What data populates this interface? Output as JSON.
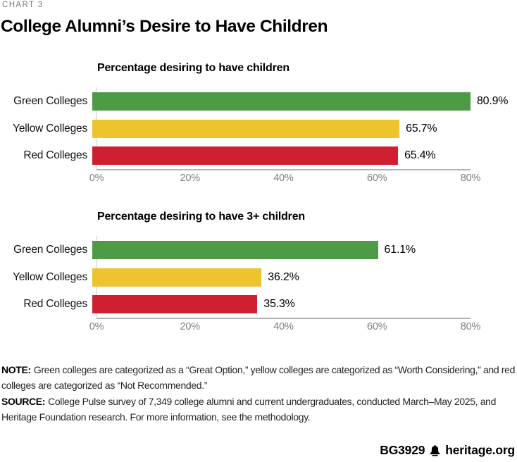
{
  "kicker": "CHART 3",
  "title": "College Alumni’s Desire to Have Children",
  "chart_data": [
    {
      "type": "bar",
      "orientation": "horizontal",
      "title": "Percentage desiring to have children",
      "categories": [
        "Green Colleges",
        "Yellow Colleges",
        "Red Colleges"
      ],
      "values": [
        80.9,
        65.7,
        65.4
      ],
      "value_labels": [
        "80.9%",
        "65.7%",
        "65.4%"
      ],
      "bar_colors": [
        "#4e9b45",
        "#eec32d",
        "#ce2030"
      ],
      "xlabel": "",
      "ylabel": "",
      "xlim": [
        0,
        80
      ],
      "xticks": [
        "0%",
        "20%",
        "40%",
        "60%",
        "80%"
      ],
      "grid": false,
      "legend": false
    },
    {
      "type": "bar",
      "orientation": "horizontal",
      "title": "Percentage desiring to have 3+ children",
      "categories": [
        "Green Colleges",
        "Yellow Colleges",
        "Red Colleges"
      ],
      "values": [
        61.1,
        36.2,
        35.3
      ],
      "value_labels": [
        "61.1%",
        "36.2%",
        "35.3%"
      ],
      "bar_colors": [
        "#4e9b45",
        "#eec32d",
        "#ce2030"
      ],
      "xlabel": "",
      "ylabel": "",
      "xlim": [
        0,
        80
      ],
      "xticks": [
        "0%",
        "20%",
        "40%",
        "60%",
        "80%"
      ],
      "grid": false,
      "legend": false
    }
  ],
  "note": {
    "label": "NOTE:",
    "text": "Green colleges are categorized as a “Great Option,” yellow colleges are categorized as “Worth Considering,” and red colleges are categorized as “Not Recommended.”"
  },
  "source": {
    "label": "SOURCE:",
    "text": "College Pulse survey of 7,349 college alumni and current undergraduates, conducted March–May 2025, and Heritage Foundation research. For more information, see the methodology."
  },
  "footer": {
    "id": "BG3929",
    "site": "heritage.org",
    "logo_icon": "liberty-bell-icon"
  }
}
